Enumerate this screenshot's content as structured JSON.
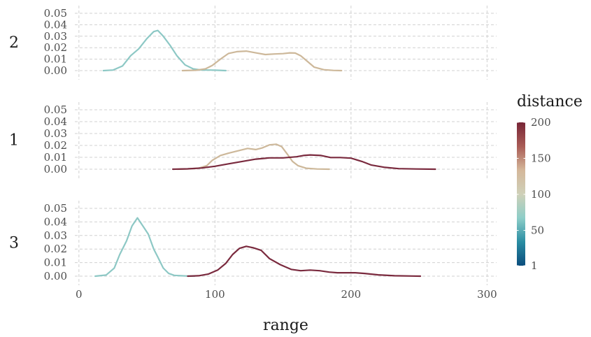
{
  "chart_data": {
    "type": "line",
    "chart_kind": "density ridgelines by facet",
    "xlabel": "range",
    "xlim": [
      -3,
      307
    ],
    "x_ticks": [
      0,
      100,
      200,
      300
    ],
    "x_tick_labels": [
      "0",
      "100",
      "200",
      "300"
    ],
    "ylim": [
      -0.007,
      0.057
    ],
    "y_ticks": [
      0,
      0.01,
      0.02,
      0.03,
      0.04,
      0.05
    ],
    "y_tick_labels": [
      "0.00",
      "0.01",
      "0.02",
      "0.03",
      "0.04",
      "0.05"
    ],
    "grid": true,
    "legend": {
      "title": "distance",
      "position": "right",
      "colorbar": true,
      "min": 1,
      "max": 200,
      "ticks": [
        1,
        50,
        100,
        150,
        200
      ],
      "tick_labels": [
        "1",
        "50",
        "100",
        "150",
        "200"
      ],
      "colors": [
        "#0b4d7d",
        "#2a8da3",
        "#8ecec8",
        "#cfd0b8",
        "#d4b79a",
        "#a95c56",
        "#772536"
      ]
    },
    "facets": [
      {
        "label": "2",
        "series": [
          {
            "distance": 50,
            "color": "#8dc8c5",
            "x": [
              18,
              25,
              32,
              38,
              44,
              50,
              55,
              58,
              62,
              67,
              72,
              78,
              84,
              90,
              96,
              102,
              108
            ],
            "y": [
              0.0,
              0.0005,
              0.004,
              0.013,
              0.019,
              0.028,
              0.034,
              0.035,
              0.03,
              0.022,
              0.013,
              0.005,
              0.0015,
              0.0005,
              0.0005,
              0.0003,
              0.0
            ]
          },
          {
            "distance": 150,
            "color": "#cdb89a",
            "x": [
              76,
              86,
              93,
              98,
              104,
              110,
              116,
              123,
              130,
              137,
              144,
              150,
              155,
              159,
              163,
              168,
              173,
              180,
              187,
              193
            ],
            "y": [
              0.0,
              0.0003,
              0.0015,
              0.0045,
              0.01,
              0.015,
              0.0165,
              0.017,
              0.0155,
              0.014,
              0.0145,
              0.0148,
              0.0155,
              0.0153,
              0.013,
              0.008,
              0.003,
              0.0008,
              0.0002,
              0.0
            ]
          }
        ]
      },
      {
        "label": "1",
        "series": [
          {
            "distance": 150,
            "color": "#cdb89a",
            "x": [
              72,
              80,
              88,
              94,
              98,
              104,
              110,
              117,
              124,
              130,
              135,
              140,
              145,
              149,
              153,
              157,
              161,
              167,
              175,
              184
            ],
            "y": [
              0.0,
              0.0003,
              0.0008,
              0.003,
              0.0075,
              0.0115,
              0.0135,
              0.0155,
              0.0175,
              0.0165,
              0.018,
              0.0205,
              0.021,
              0.019,
              0.013,
              0.0065,
              0.003,
              0.0008,
              0.0002,
              0.0
            ]
          },
          {
            "distance": 200,
            "color": "#7a2a3e",
            "x": [
              69,
              80,
              90,
              100,
              110,
              120,
              130,
              140,
              150,
              160,
              165,
              170,
              178,
              185,
              192,
              200,
              208,
              215,
              225,
              235,
              248,
              262
            ],
            "y": [
              0.0,
              0.0003,
              0.001,
              0.0025,
              0.0045,
              0.0065,
              0.0085,
              0.0095,
              0.0095,
              0.0105,
              0.0115,
              0.012,
              0.0115,
              0.0098,
              0.0098,
              0.0093,
              0.0065,
              0.0035,
              0.0015,
              0.0005,
              0.0002,
              0.0
            ]
          }
        ]
      },
      {
        "label": "3",
        "series": [
          {
            "distance": 50,
            "color": "#8dc8c5",
            "x": [
              12,
              20,
              26,
              30,
              35,
              39,
              43,
              47,
              51,
              55,
              58,
              62,
              66,
              70,
              75,
              80,
              85
            ],
            "y": [
              0.0,
              0.0008,
              0.006,
              0.016,
              0.026,
              0.037,
              0.043,
              0.037,
              0.031,
              0.02,
              0.014,
              0.006,
              0.002,
              0.0006,
              0.0003,
              0.0001,
              0.0
            ]
          },
          {
            "distance": 200,
            "color": "#7a2a3e",
            "x": [
              80,
              88,
              95,
              102,
              108,
              113,
              118,
              123,
              128,
              134,
              140,
              148,
              156,
              163,
              170,
              177,
              184,
              190,
              197,
              203,
              210,
              220,
              232,
              245,
              251
            ],
            "y": [
              0.0,
              0.0003,
              0.0015,
              0.0045,
              0.0095,
              0.016,
              0.0205,
              0.022,
              0.021,
              0.019,
              0.013,
              0.0085,
              0.005,
              0.004,
              0.0045,
              0.004,
              0.003,
              0.0025,
              0.0025,
              0.0025,
              0.002,
              0.001,
              0.0003,
              0.0001,
              0.0
            ]
          }
        ]
      }
    ]
  }
}
